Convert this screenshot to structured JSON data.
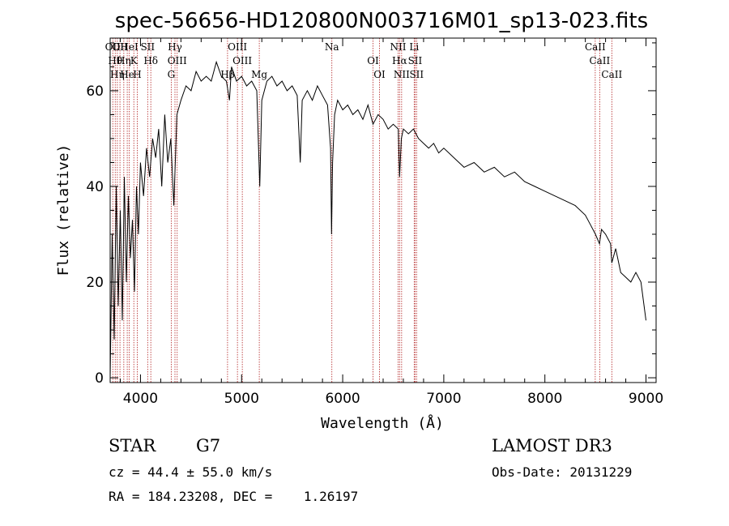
{
  "title": "spec-56656-HD120800N003716M01_sp13-023.fits",
  "info": {
    "object_class": "STAR",
    "subclass": "G7",
    "velocity": "cz = 44.4 ± 55.0 km/s",
    "coords": "RA = 184.23208, DEC =    1.26197",
    "survey": "LAMOST DR3",
    "obs_date": "Obs-Date: 20131229"
  },
  "colors": {
    "spectrum": "#000000",
    "line_marker": "#b22222"
  },
  "chart_data": {
    "type": "line",
    "title": "spec-56656-HD120800N003716M01_sp13-023.fits",
    "xlabel": "Wavelength (Å)",
    "ylabel": "Flux (relative)",
    "xlim": [
      3700,
      9100
    ],
    "ylim": [
      -1,
      71
    ],
    "x_ticks": [
      4000,
      5000,
      6000,
      7000,
      8000,
      9000
    ],
    "y_ticks": [
      0,
      20,
      40,
      60
    ],
    "grid": false,
    "series": [
      {
        "x": [
          3700,
          3720,
          3740,
          3760,
          3780,
          3800,
          3820,
          3840,
          3860,
          3880,
          3900,
          3920,
          3940,
          3960,
          3980,
          4000,
          4030,
          4060,
          4090,
          4120,
          4150,
          4180,
          4210,
          4240,
          4270,
          4300,
          4330,
          4360,
          4400,
          4450,
          4500,
          4550,
          4600,
          4650,
          4700,
          4750,
          4800,
          4850,
          4880,
          4900,
          4950,
          5000,
          5050,
          5100,
          5150,
          5180,
          5200,
          5250,
          5300,
          5350,
          5400,
          5450,
          5500,
          5550,
          5580,
          5600,
          5650,
          5700,
          5750,
          5800,
          5850,
          5880,
          5890,
          5900,
          5920,
          5950,
          6000,
          6050,
          6100,
          6150,
          6200,
          6250,
          6300,
          6350,
          6400,
          6450,
          6500,
          6550,
          6563,
          6580,
          6600,
          6650,
          6700,
          6750,
          6800,
          6850,
          6900,
          6950,
          7000,
          7100,
          7200,
          7300,
          7400,
          7500,
          7600,
          7700,
          7800,
          7900,
          8000,
          8100,
          8200,
          8300,
          8400,
          8450,
          8500,
          8540,
          8560,
          8600,
          8650,
          8662,
          8700,
          8750,
          8800,
          8850,
          8900,
          8950,
          9000
        ],
        "y": [
          0,
          30,
          8,
          40,
          15,
          35,
          12,
          42,
          20,
          38,
          25,
          33,
          18,
          40,
          30,
          45,
          38,
          48,
          42,
          50,
          46,
          52,
          40,
          55,
          45,
          50,
          36,
          55,
          58,
          61,
          60,
          64,
          62,
          63,
          62,
          66,
          63,
          62,
          58,
          65,
          62,
          63,
          61,
          62,
          60,
          40,
          58,
          62,
          63,
          61,
          62,
          60,
          61,
          59,
          45,
          58,
          60,
          58,
          61,
          59,
          57,
          48,
          30,
          45,
          55,
          58,
          56,
          57,
          55,
          56,
          54,
          57,
          53,
          55,
          54,
          52,
          53,
          52,
          42,
          50,
          52,
          51,
          52,
          50,
          49,
          48,
          49,
          47,
          48,
          46,
          44,
          45,
          43,
          44,
          42,
          43,
          41,
          40,
          39,
          38,
          37,
          36,
          34,
          32,
          30,
          28,
          31,
          30,
          28,
          24,
          27,
          22,
          21,
          20,
          22,
          20,
          12
        ]
      }
    ],
    "line_markers": [
      {
        "wavelength": 3726,
        "label": "OII"
      },
      {
        "wavelength": 3750,
        "label": "Hθ"
      },
      {
        "wavelength": 3771,
        "label": "Hη"
      },
      {
        "wavelength": 3797,
        "label": "OII"
      },
      {
        "wavelength": 3835,
        "label": "Hη"
      },
      {
        "wavelength": 3869,
        "label": "He"
      },
      {
        "wavelength": 3889,
        "label": "HeI"
      },
      {
        "wavelength": 3934,
        "label": "K"
      },
      {
        "wavelength": 3968,
        "label": "H"
      },
      {
        "wavelength": 4071,
        "label": "SII"
      },
      {
        "wavelength": 4102,
        "label": "Hδ"
      },
      {
        "wavelength": 4304,
        "label": "G"
      },
      {
        "wavelength": 4341,
        "label": "Hγ"
      },
      {
        "wavelength": 4363,
        "label": "OIII"
      },
      {
        "wavelength": 4861,
        "label": "Hβ"
      },
      {
        "wavelength": 4959,
        "label": "OIII"
      },
      {
        "wavelength": 5007,
        "label": "OIII"
      },
      {
        "wavelength": 5175,
        "label": "Mg"
      },
      {
        "wavelength": 5893,
        "label": "Na"
      },
      {
        "wavelength": 6300,
        "label": "OI"
      },
      {
        "wavelength": 6364,
        "label": "OI"
      },
      {
        "wavelength": 6548,
        "label": "NII"
      },
      {
        "wavelength": 6563,
        "label": "Hα"
      },
      {
        "wavelength": 6583,
        "label": "NII"
      },
      {
        "wavelength": 6707,
        "label": "Li"
      },
      {
        "wavelength": 6716,
        "label": "SII"
      },
      {
        "wavelength": 6731,
        "label": "SII"
      },
      {
        "wavelength": 8498,
        "label": "CaII"
      },
      {
        "wavelength": 8542,
        "label": "CaII"
      },
      {
        "wavelength": 8662,
        "label": "CaII"
      }
    ]
  }
}
